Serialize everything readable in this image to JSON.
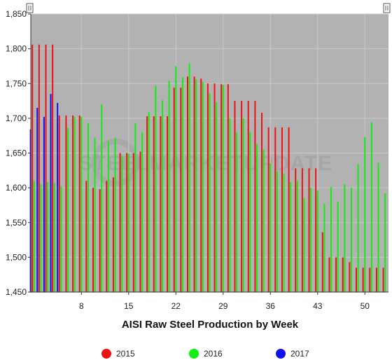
{
  "chart_data": {
    "type": "bar",
    "title": "",
    "xlabel": "AISI Raw Steel Production by Week",
    "ylabel": "",
    "ylim": [
      1450,
      1850
    ],
    "xlim": [
      0.5,
      53.5
    ],
    "grid": true,
    "legend_position": "bottom",
    "yticks": [
      1450,
      1500,
      1550,
      1600,
      1650,
      1700,
      1750,
      1800,
      1850
    ],
    "ytick_labels": [
      "1,450",
      "1,500",
      "1,550",
      "1,600",
      "1,650",
      "1,700",
      "1,750",
      "1,800",
      "1,850"
    ],
    "xticks": [
      8,
      15,
      22,
      29,
      36,
      43,
      50
    ],
    "xtick_labels": [
      "8",
      "15",
      "22",
      "29",
      "36",
      "43",
      "50"
    ],
    "watermark": "STEELMARKETUPDATE",
    "plot_background": "#b2b2b2",
    "series": [
      {
        "name": "2015",
        "color": "#ee1111",
        "x": [
          1,
          2,
          3,
          4,
          5,
          6,
          7,
          8,
          9,
          10,
          11,
          12,
          13,
          14,
          15,
          16,
          17,
          18,
          19,
          20,
          21,
          22,
          23,
          24,
          25,
          26,
          27,
          28,
          29,
          30,
          31,
          32,
          33,
          34,
          35,
          36,
          37,
          38,
          39,
          40,
          41,
          42,
          43,
          44,
          45,
          46,
          47,
          48,
          49,
          50,
          51,
          52,
          53
        ],
        "values": [
          1806,
          1806,
          1806,
          1806,
          1704,
          1704,
          1704,
          1704,
          1610,
          1600,
          1598,
          1610,
          1615,
          1650,
          1650,
          1650,
          1652,
          1703,
          1703,
          1703,
          1703,
          1744,
          1744,
          1760,
          1760,
          1757,
          1750,
          1750,
          1749,
          1749,
          1725,
          1725,
          1725,
          1725,
          1708,
          1687,
          1687,
          1687,
          1687,
          1628,
          1628,
          1628,
          1628,
          1536,
          1500,
          1500,
          1500,
          1493,
          1485,
          1485,
          1485,
          1485,
          1485
        ]
      },
      {
        "name": "2016",
        "color": "#11ee11",
        "x": [
          1,
          2,
          3,
          4,
          5,
          6,
          7,
          8,
          9,
          10,
          11,
          12,
          13,
          14,
          15,
          16,
          17,
          18,
          19,
          20,
          21,
          22,
          23,
          24,
          25,
          26,
          27,
          28,
          29,
          30,
          31,
          32,
          33,
          34,
          35,
          36,
          37,
          38,
          39,
          40,
          41,
          42,
          43,
          44,
          45,
          46,
          47,
          48,
          49,
          50,
          51,
          52,
          53
        ],
        "values": [
          1610,
          1605,
          1608,
          1607,
          1602,
          1686,
          1702,
          1702,
          1693,
          1672,
          1720,
          1667,
          1672,
          1646,
          1649,
          1693,
          1680,
          1709,
          1747,
          1726,
          1754,
          1775,
          1759,
          1779,
          1756,
          1752,
          1736,
          1723,
          1748,
          1700,
          1680,
          1700,
          1680,
          1663,
          1655,
          1635,
          1624,
          1620,
          1608,
          1610,
          1585,
          1600,
          1596,
          1577,
          1601,
          1580,
          1605,
          1600,
          1634,
          1673,
          1694,
          1636,
          1592
        ]
      },
      {
        "name": "2017",
        "color": "#1111ee",
        "x": [
          1,
          2,
          3,
          4,
          5
        ],
        "values": [
          1684,
          1715,
          1702,
          1735,
          1722
        ]
      }
    ]
  }
}
